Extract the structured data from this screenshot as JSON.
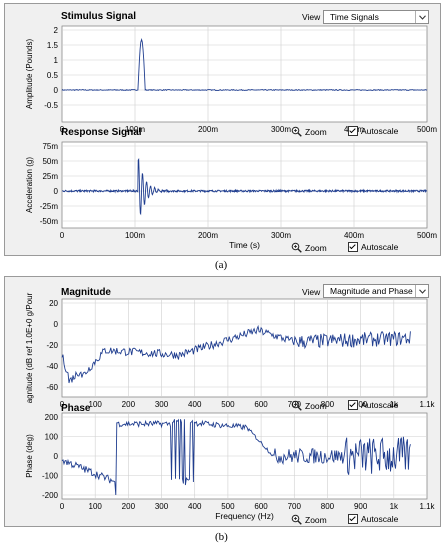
{
  "panel_a": {
    "title": "Stimulus Signal",
    "view_label": "View",
    "view_value": "Time Signals",
    "stimulus": {
      "ylabel": "Amplitude (Pounds)",
      "yticks": [
        "2",
        "1.5",
        "1",
        "0.5",
        "0",
        "-0.5"
      ],
      "xticks": [
        "0",
        "100m",
        "200m",
        "300m",
        "400m",
        "500m"
      ]
    },
    "response_title": "Response Signal",
    "response": {
      "ylabel": "Acceleration (g)",
      "yticks": [
        "75m",
        "50m",
        "25m",
        "0",
        "-25m",
        "-50m"
      ],
      "xticks": [
        "0",
        "100m",
        "200m",
        "300m",
        "400m",
        "500m"
      ],
      "xlabel": "Time (s)"
    },
    "zoom_label": "Zoom",
    "autoscale_label": "Autoscale",
    "caption": "(a)"
  },
  "panel_b": {
    "title": "Magnitude",
    "view_label": "View",
    "view_value": "Magnitude and Phase",
    "magnitude": {
      "ylabel": "agnitude (dB ref 1.0E+0 g/Pour",
      "yticks": [
        "20",
        "0",
        "-20",
        "-40",
        "-60"
      ],
      "xticks": [
        "0",
        "100",
        "200",
        "300",
        "400",
        "500",
        "600",
        "700",
        "800",
        "900",
        "1k",
        "1.1k"
      ]
    },
    "phase_title": "Phase",
    "phase": {
      "ylabel": "Phase (deg)",
      "yticks": [
        "200",
        "100",
        "0",
        "-100",
        "-200"
      ],
      "xticks": [
        "0",
        "100",
        "200",
        "300",
        "400",
        "500",
        "600",
        "700",
        "800",
        "900",
        "1k",
        "1.1k"
      ],
      "xlabel": "Frequency (Hz)"
    },
    "zoom_label": "Zoom",
    "autoscale_label": "Autoscale",
    "caption": "(b)"
  },
  "colors": {
    "trace": "#1f3d8f",
    "grid": "#cfcfcf",
    "plot_bg": "#ffffff",
    "panel_bg": "#f0f0f0"
  },
  "icons": [
    "zoom-icon",
    "autoscale-checkbox-icon",
    "chevron-down-icon"
  ]
}
